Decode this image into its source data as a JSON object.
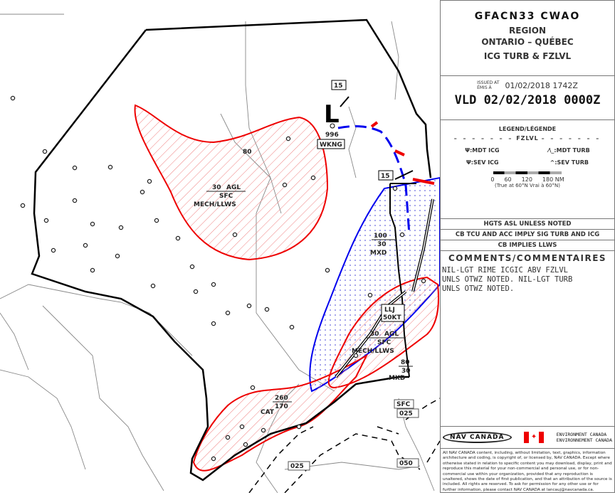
{
  "header": {
    "product": "GFACN33  CWAO",
    "region_label": "REGION",
    "region": "ONTARIO – QUÉBEC",
    "chart_type": "ICG TURB & FZLVL"
  },
  "validity": {
    "issued_label_en": "ISSUED AT",
    "issued_label_fr": "ÉMIS À",
    "issued": "01/02/2018 1742Z",
    "valid": "VLD 02/02/2018 0000Z"
  },
  "legend": {
    "title": "LEGEND/LÉGENDE",
    "fzlvl": "FZLVL",
    "mdt_icg": ":MDT ICG",
    "sev_icg": ":SEV ICG",
    "mdt_turb": ":MDT TURB",
    "sev_turb": ":SEV TURB",
    "scale_ticks": [
      "0",
      "60",
      "120",
      "180 NM"
    ],
    "scale_note": "(True at 60°N   Vrai à 60°N)"
  },
  "notes": {
    "hgts": "HGTS ASL UNLESS NOTED",
    "cb": "CB TCU AND ACC IMPLY SIG TURB AND ICG",
    "llws": "CB IMPLIES LLWS"
  },
  "comments": {
    "title": "COMMENTS/COMMENTAIRES",
    "lines": [
      "NIL-LGT RIME ICGIC ABV FZLVL",
      "UNLS OTWZ NOTED. NIL-LGT TURB",
      "UNLS OTWZ NOTED."
    ]
  },
  "logos": {
    "nav_canada": "NAV CANADA",
    "env_en": "ENVIRONMENT CANADA",
    "env_fr": "ENVIRONNEMENT CANADA"
  },
  "copyright": "All NAV CANADA content, including, without limitation, text, graphics, information architecture and coding, is copyright of, or licensed by, NAV CANADA. Except where otherwise stated in relation to specific content you may download, display, print and reproduce this material for your non-commercial and personal use, or for non-commercial use within your organization, provided that any reproduction is unaltered, shows the date of first publication, and that an attribution of the source is included. All rights are reserved. To ask for permission for any other use or for further information, please contact NAV CANADA at lancauj@navcanada.ca.",
  "map": {
    "low": {
      "symbol": "L",
      "pressure": "996",
      "trend": "WKNG",
      "speed": "15"
    },
    "speed2": "15",
    "area1": {
      "top": "30",
      "top_unit": "AGL",
      "base": "SFC",
      "text": "MECH/LLWS"
    },
    "area_mxd1": {
      "top": "100",
      "base": "30",
      "text": "MXD"
    },
    "llj": {
      "line1": "LLJ",
      "line2": "50KT"
    },
    "area2": {
      "top": "30",
      "top_unit": "AGL",
      "base": "SFC",
      "text": "MECH/LLWS"
    },
    "area_mxd2": {
      "top": "80",
      "base": "30",
      "text": "MXD"
    },
    "cat": {
      "top": "260",
      "base": "170",
      "text": "CAT"
    },
    "fzlvl_labels": [
      "SFC",
      "025",
      "025",
      "050"
    ],
    "contour": "80",
    "colors": {
      "icing": "#0000ee",
      "turb": "#ee0000",
      "boundary": "#000000"
    }
  }
}
